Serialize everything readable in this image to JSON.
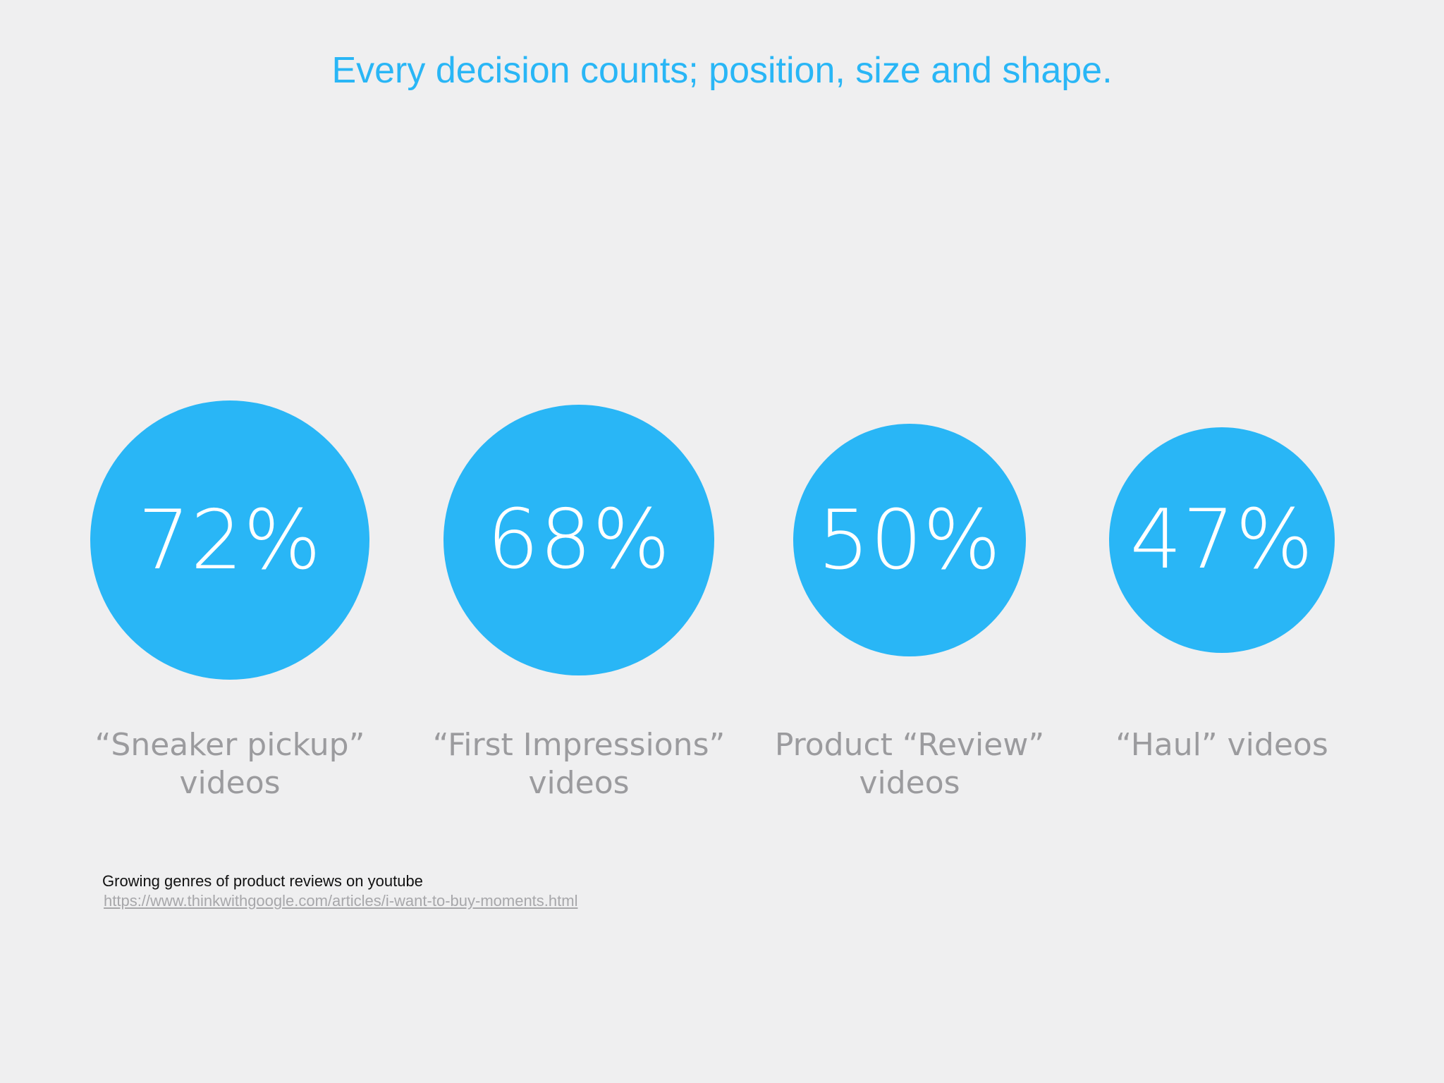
{
  "title": "Every decision counts; position, size and shape.",
  "colors": {
    "accent": "#29b6f6",
    "background": "#efeff0",
    "label": "#9b9b9e"
  },
  "chart_data": {
    "type": "bubble",
    "title": "Every decision counts; position, size and shape.",
    "categories": [
      [
        "“Sneaker pickup”",
        "videos"
      ],
      [
        "“First Impressions”",
        "videos"
      ],
      [
        "Product “Review”",
        "videos"
      ],
      [
        "“Haul” videos"
      ]
    ],
    "values": [
      72,
      68,
      50,
      47
    ],
    "value_labels": [
      "72%",
      "68%",
      "50%",
      "47%"
    ],
    "unit": "%"
  },
  "source": {
    "caption": "Growing genres of product reviews on youtube",
    "url": "https://www.thinkwithgoogle.com/articles/i-want-to-buy-moments.html"
  }
}
